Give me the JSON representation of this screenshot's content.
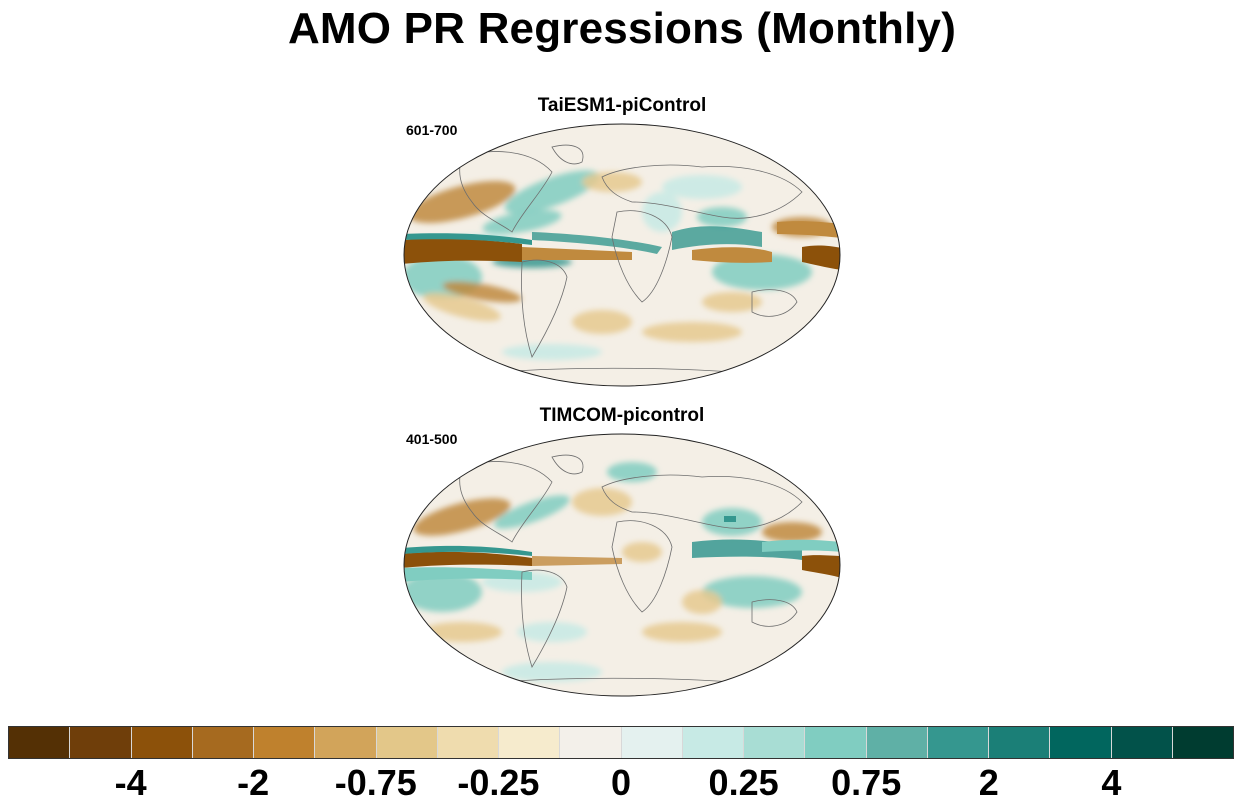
{
  "title": "AMO PR Regressions (Monthly)",
  "panels": [
    {
      "title": "TaiESM1-piControl",
      "period": "601-700"
    },
    {
      "title": "TIMCOM-picontrol",
      "period": "401-500"
    }
  ],
  "colorbar": {
    "colors": [
      "#543005",
      "#6f3e0a",
      "#8c510a",
      "#a66a1f",
      "#bf812d",
      "#d2a45a",
      "#e3c789",
      "#efdcae",
      "#f6ebcd",
      "#f3f0ea",
      "#e4f1ef",
      "#c7eae5",
      "#a8ddd4",
      "#80cdc1",
      "#5fb0a6",
      "#35978f",
      "#1b7f77",
      "#01665e",
      "#02524a",
      "#003c30"
    ],
    "labels": [
      "-4",
      "-2",
      "-0.75",
      "-0.25",
      "0",
      "0.25",
      "0.75",
      "2",
      "4"
    ]
  },
  "map_palette": {
    "ocean_base": "#f4efe6",
    "brown_strong": "#8c510a",
    "brown_mid": "#c08a3e",
    "brown_light": "#e6c98f",
    "teal_light": "#c7eae5",
    "teal_mid": "#80cdc1",
    "teal_strong": "#35978f",
    "coast": "#6e6e6e"
  }
}
